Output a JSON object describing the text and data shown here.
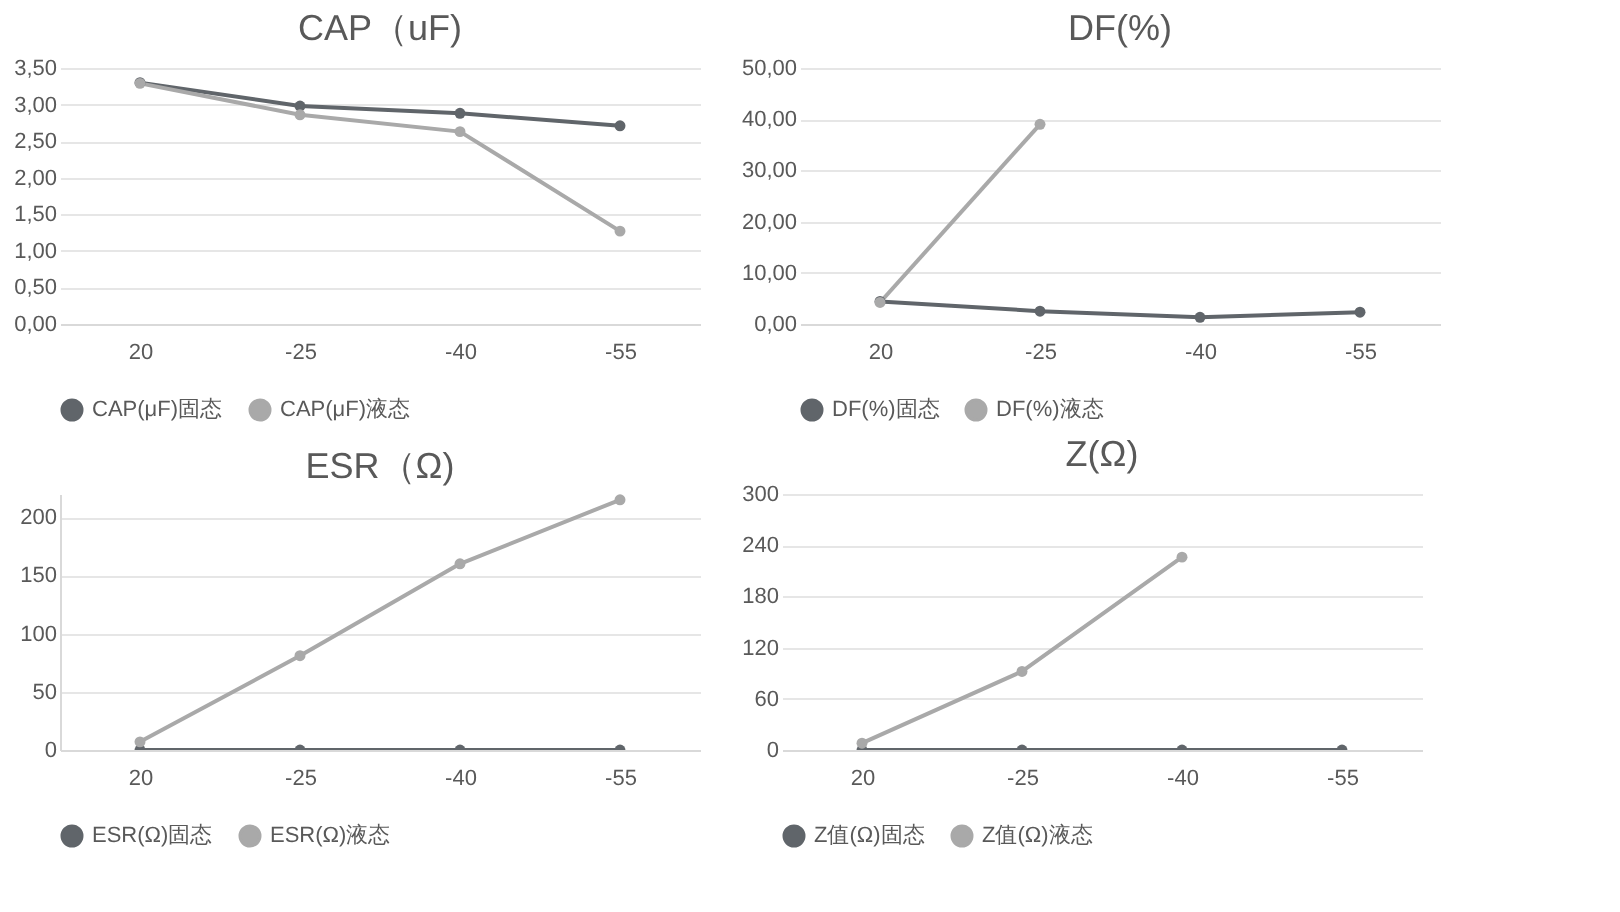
{
  "chart_data": [
    {
      "type": "line",
      "title": "CAP（uF)",
      "categories": [
        "20",
        "-25",
        "-40",
        "-55"
      ],
      "series": [
        {
          "name": "CAP(μF)固态",
          "color": "#60656a",
          "values": [
            3.3,
            2.98,
            2.88,
            2.71
          ]
        },
        {
          "name": "CAP(μF)液态",
          "color": "#a9a9a9",
          "values": [
            3.29,
            2.86,
            2.63,
            1.27
          ]
        }
      ],
      "ylim": [
        0,
        3.5
      ],
      "yticks": [
        {
          "value": 0,
          "label": "0,00"
        },
        {
          "value": 0.5,
          "label": "0,50"
        },
        {
          "value": 1,
          "label": "1,00"
        },
        {
          "value": 1.5,
          "label": "1,50"
        },
        {
          "value": 2,
          "label": "2,00"
        },
        {
          "value": 2.5,
          "label": "2,50"
        },
        {
          "value": 3,
          "label": "3,00"
        },
        {
          "value": 3.5,
          "label": "3,50"
        }
      ],
      "grid": "y",
      "legend": "bottom",
      "marker": "circle",
      "line_style": "solid"
    },
    {
      "type": "line",
      "title": "DF(%)",
      "categories": [
        "20",
        "-25",
        "-40",
        "-55"
      ],
      "series": [
        {
          "name": "DF(%)固态",
          "color": "#60656a",
          "values": [
            4.4,
            2.5,
            1.3,
            2.3
          ]
        },
        {
          "name": "DF(%)液态",
          "color": "#a9a9a9",
          "values": [
            4.2,
            39,
            null,
            null
          ]
        }
      ],
      "ylim": [
        0,
        50
      ],
      "yticks": [
        {
          "value": 0,
          "label": "0,00"
        },
        {
          "value": 10,
          "label": "10,00"
        },
        {
          "value": 20,
          "label": "20,00"
        },
        {
          "value": 30,
          "label": "30,00"
        },
        {
          "value": 40,
          "label": "40,00"
        },
        {
          "value": 50,
          "label": "50,00"
        }
      ],
      "grid": "y",
      "legend": "bottom",
      "marker": "circle",
      "line_style": "solid"
    },
    {
      "type": "line",
      "title": "ESR（Ω)",
      "categories": [
        "20",
        "-25",
        "-40",
        "-55"
      ],
      "series": [
        {
          "name": "ESR(Ω)固态",
          "color": "#60656a",
          "values": [
            0,
            0,
            0,
            0
          ]
        },
        {
          "name": "ESR(Ω)液态",
          "color": "#a9a9a9",
          "values": [
            7,
            81,
            160,
            215
          ]
        }
      ],
      "ylim": [
        0,
        220
      ],
      "yticks": [
        0,
        50,
        100,
        150,
        200
      ],
      "grid": "y",
      "legend": "bottom",
      "marker": "circle",
      "line_style": "solid"
    },
    {
      "type": "line",
      "title": "Z(Ω)",
      "categories": [
        "20",
        "-25",
        "-40",
        "-55"
      ],
      "series": [
        {
          "name": "Z值(Ω)固态",
          "color": "#60656a",
          "values": [
            0,
            0,
            0,
            0
          ]
        },
        {
          "name": "Z值(Ω)液态",
          "color": "#a9a9a9",
          "values": [
            8,
            92,
            226,
            null
          ]
        }
      ],
      "ylim": [
        0,
        300
      ],
      "yticks": [
        0,
        60,
        120,
        180,
        240,
        300
      ],
      "grid": "y",
      "legend": "bottom",
      "marker": "circle",
      "line_style": "solid"
    }
  ]
}
